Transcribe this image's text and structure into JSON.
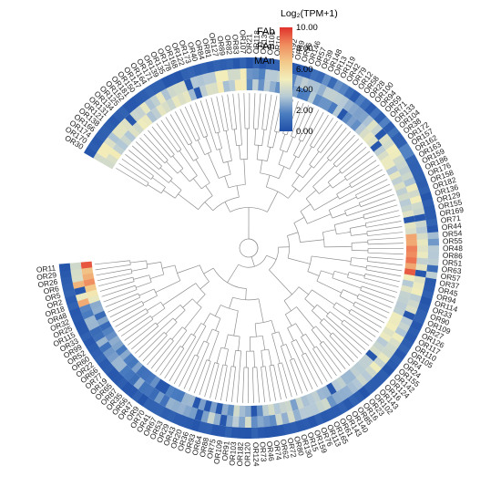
{
  "tracks": [
    "FAb",
    "FAn",
    "MAn"
  ],
  "legend": {
    "title": "Log₂(TPM+1)",
    "ticks": [
      "10.00",
      "8.00",
      "6.00",
      "4.00",
      "2.00",
      "0.00"
    ],
    "min": 0,
    "max": 10,
    "colors": [
      "#1f4fa8",
      "#4a7cc0",
      "#b5c9d6",
      "#f3eebb",
      "#f2c98a",
      "#f08c5f",
      "#e0322b"
    ]
  },
  "highlight_colors": {
    "red": "#d9534f",
    "blue": "#3b6fc4"
  },
  "leaves": [
    {
      "label": "OR30"
    },
    {
      "label": "OR170"
    },
    {
      "label": "OR174"
    },
    {
      "label": "OR166"
    },
    {
      "label": "OR138"
    },
    {
      "label": "OR121"
    },
    {
      "label": "OR131"
    },
    {
      "label": "OR134"
    },
    {
      "label": "OR125"
    },
    {
      "label": "OR152"
    },
    {
      "label": "OR181"
    },
    {
      "label": "OR150"
    },
    {
      "label": "OR147"
    },
    {
      "label": "OR164"
    },
    {
      "label": "OR171"
    },
    {
      "label": "OR139"
    },
    {
      "label": "OR135"
    },
    {
      "label": "OR178"
    },
    {
      "label": "OR168"
    },
    {
      "label": "OR122"
    },
    {
      "label": "OR173"
    },
    {
      "label": "OR40"
    },
    {
      "label": "OR84"
    },
    {
      "label": "OR81"
    },
    {
      "label": "OR127"
    },
    {
      "label": "OR89"
    },
    {
      "label": "OR82"
    },
    {
      "label": "OR83"
    },
    {
      "label": "OR107"
    },
    {
      "label": "OR21"
    },
    {
      "label": "OR118"
    },
    {
      "label": "OR131"
    },
    {
      "label": "OR101"
    },
    {
      "label": "OR10"
    },
    {
      "label": "OR34"
    },
    {
      "label": "OR92"
    },
    {
      "label": "OR49"
    },
    {
      "label": "OR96"
    },
    {
      "label": "OR146"
    },
    {
      "label": "OR57"
    },
    {
      "label": "OR39"
    },
    {
      "label": "OR148"
    },
    {
      "label": "OR13"
    },
    {
      "label": "OR119"
    },
    {
      "label": "OR42"
    },
    {
      "label": "OR79"
    },
    {
      "label": "OR12"
    },
    {
      "label": "OR58"
    },
    {
      "label": "OR28"
    },
    {
      "label": "OR100"
    },
    {
      "label": "OR94"
    },
    {
      "label": "OR59"
    },
    {
      "label": "OR71"
    },
    {
      "label": "OR133"
    },
    {
      "label": "OR104"
    },
    {
      "label": "OR38"
    },
    {
      "label": "OR172"
    },
    {
      "label": "OR157"
    },
    {
      "label": "OR162"
    },
    {
      "label": "OR163"
    },
    {
      "label": "OR159"
    },
    {
      "label": "OR186"
    },
    {
      "label": "OR176"
    },
    {
      "label": "OR158"
    },
    {
      "label": "OR182"
    },
    {
      "label": "OR136"
    },
    {
      "label": "OR129"
    },
    {
      "label": "OR155"
    },
    {
      "label": "OR169"
    },
    {
      "label": "OR71"
    },
    {
      "label": "OR44"
    },
    {
      "label": "OR54"
    },
    {
      "label": "OR55"
    },
    {
      "label": "OR48"
    },
    {
      "label": "OR86"
    },
    {
      "label": "OR51"
    },
    {
      "label": "OR63"
    },
    {
      "label": "OR57",
      "color": "blue"
    },
    {
      "label": "OR37"
    },
    {
      "label": "OR45"
    },
    {
      "label": "OR94"
    },
    {
      "label": "OR114"
    },
    {
      "label": "OR33"
    },
    {
      "label": "OR90"
    },
    {
      "label": "OR109"
    },
    {
      "label": "OR27"
    },
    {
      "label": "OR126"
    },
    {
      "label": "OR117"
    },
    {
      "label": "OR110"
    },
    {
      "label": "OR105"
    },
    {
      "label": "OR4"
    },
    {
      "label": "OR24"
    },
    {
      "label": "OR155"
    },
    {
      "label": "OR142"
    },
    {
      "label": "OR124"
    },
    {
      "label": "OR16"
    },
    {
      "label": "OR143"
    },
    {
      "label": "OR102"
    },
    {
      "label": "OR23"
    },
    {
      "label": "OR16"
    },
    {
      "label": "OR85"
    },
    {
      "label": "OR140"
    },
    {
      "label": "OR143"
    },
    {
      "label": "OR61"
    },
    {
      "label": "OR165"
    },
    {
      "label": "OR113"
    },
    {
      "label": "OR76"
    },
    {
      "label": "OR159"
    },
    {
      "label": "OR15"
    },
    {
      "label": "OR130"
    },
    {
      "label": "OR80"
    },
    {
      "label": "OR72"
    },
    {
      "label": "OR62"
    },
    {
      "label": "OR74"
    },
    {
      "label": "OR46"
    },
    {
      "label": "OR73"
    },
    {
      "label": "OR124"
    },
    {
      "label": "OR120"
    },
    {
      "label": "OR182"
    },
    {
      "label": "OR103"
    },
    {
      "label": "OR91"
    },
    {
      "label": "OR109"
    },
    {
      "label": "OR75"
    },
    {
      "label": "OR88"
    },
    {
      "label": "OR64"
    },
    {
      "label": "OR93"
    },
    {
      "label": "OR36"
    },
    {
      "label": "OR20"
    },
    {
      "label": "OR43"
    },
    {
      "label": "OR29"
    },
    {
      "label": "OR53"
    },
    {
      "label": "OR67"
    },
    {
      "label": "OR41"
    },
    {
      "label": "OR70"
    },
    {
      "label": "OR9"
    },
    {
      "label": "OR47"
    },
    {
      "label": "OR56"
    },
    {
      "label": "OR35"
    },
    {
      "label": "OR87"
    },
    {
      "label": "OR65"
    },
    {
      "label": "OR19"
    },
    {
      "label": "OR77"
    },
    {
      "label": "OR66"
    },
    {
      "label": "OR22"
    },
    {
      "label": "OR60"
    },
    {
      "label": "OR52"
    },
    {
      "label": "OR99"
    },
    {
      "label": "OR33"
    },
    {
      "label": "OR115"
    },
    {
      "label": "OR25"
    },
    {
      "label": "OR32"
    },
    {
      "label": "OR48"
    },
    {
      "label": "OR18"
    },
    {
      "label": "OR2"
    },
    {
      "label": "OR5",
      "color": "red"
    },
    {
      "label": "OR6"
    },
    {
      "label": "OR26"
    },
    {
      "label": "OR29"
    },
    {
      "label": "OR11"
    }
  ]
}
